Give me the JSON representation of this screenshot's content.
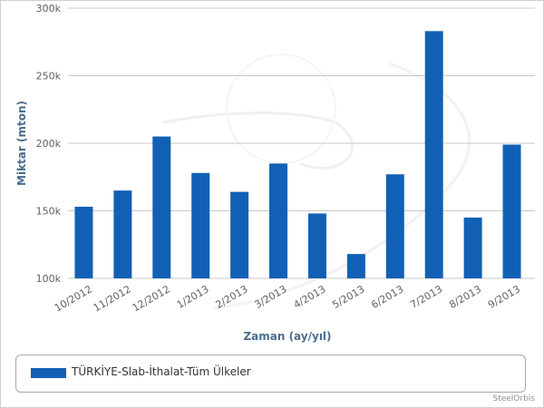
{
  "chart_data": {
    "type": "bar",
    "categories": [
      "10/2012",
      "11/2012",
      "12/2012",
      "1/2013",
      "2/2013",
      "3/2013",
      "4/2013",
      "5/2013",
      "6/2013",
      "7/2013",
      "8/2013",
      "9/2013"
    ],
    "series": [
      {
        "name": "TÜRKİYE-Slab-İthalat-Tüm Ülkeler",
        "values": [
          153000,
          165000,
          205000,
          178000,
          164000,
          185000,
          148000,
          118000,
          177000,
          283000,
          145000,
          199000
        ]
      }
    ],
    "xlabel": "Zaman (ay/yıl)",
    "ylabel": "Miktar (mton)",
    "ylim": [
      100000,
      300000
    ],
    "yticks": [
      100000,
      150000,
      200000,
      250000,
      300000
    ],
    "ytick_labels": [
      "100k",
      "150k",
      "200k",
      "250k",
      "300k"
    ],
    "grid": true,
    "legend": "bottom",
    "bar_color": "#1160b5"
  },
  "credit": "SteelOrbis"
}
